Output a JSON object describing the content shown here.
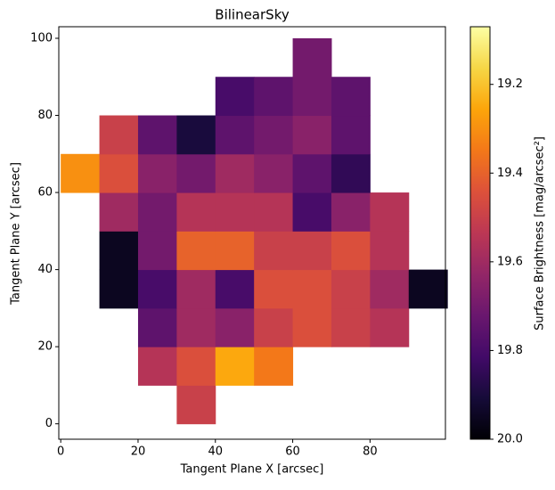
{
  "chart_data": {
    "type": "heatmap",
    "title": "BilinearSky",
    "x_label": "Tangent Plane X [arcsec]",
    "y_label": "Tangent Plane Y [arcsec]",
    "colorbar_label": "Surface Brightness [mag/arcsec²]",
    "x_edges": [
      0,
      10,
      20,
      30,
      40,
      50,
      60,
      70,
      80,
      90,
      100
    ],
    "y_edges": [
      0,
      10,
      20,
      30,
      40,
      50,
      60,
      70,
      80,
      90,
      100
    ],
    "z": [
      [
        null,
        null,
        null,
        19.5,
        null,
        null,
        null,
        null,
        null,
        null
      ],
      [
        null,
        null,
        19.55,
        19.45,
        19.25,
        19.35,
        null,
        null,
        null,
        null
      ],
      [
        null,
        null,
        19.75,
        19.6,
        19.65,
        19.5,
        19.45,
        19.5,
        19.55,
        null
      ],
      [
        null,
        19.95,
        19.8,
        19.6,
        19.8,
        19.45,
        19.45,
        19.5,
        19.6,
        19.95
      ],
      [
        null,
        19.95,
        19.7,
        19.4,
        19.4,
        19.5,
        19.5,
        19.45,
        19.55,
        null
      ],
      [
        null,
        19.6,
        19.7,
        19.55,
        19.55,
        19.55,
        19.8,
        19.65,
        19.55,
        null
      ],
      [
        19.3,
        19.45,
        19.65,
        19.7,
        19.6,
        19.65,
        19.75,
        19.85,
        null,
        null
      ],
      [
        null,
        19.5,
        19.75,
        19.9,
        19.75,
        19.7,
        19.65,
        19.75,
        null,
        null
      ],
      [
        null,
        null,
        null,
        null,
        19.8,
        19.75,
        19.7,
        19.75,
        null,
        null
      ],
      [
        null,
        null,
        null,
        null,
        null,
        null,
        19.7,
        null,
        null,
        null
      ]
    ],
    "xlim": [
      -0.5,
      99.5
    ],
    "ylim": [
      -4,
      103
    ],
    "xticks": [
      0,
      20,
      40,
      60,
      80
    ],
    "yticks": [
      0,
      20,
      40,
      60,
      80,
      100
    ],
    "zlim": [
      20,
      19.07
    ],
    "zticks": [
      19.2,
      19.4,
      19.6,
      19.8,
      {
        "value": 20,
        "label": "20.0"
      }
    ],
    "colormap": [
      "#000004",
      "#160b39",
      "#420a68",
      "#6a176e",
      "#932667",
      "#bc3754",
      "#dd513a",
      "#f37819",
      "#fca50a",
      "#f6d746",
      "#fcffa4"
    ]
  }
}
